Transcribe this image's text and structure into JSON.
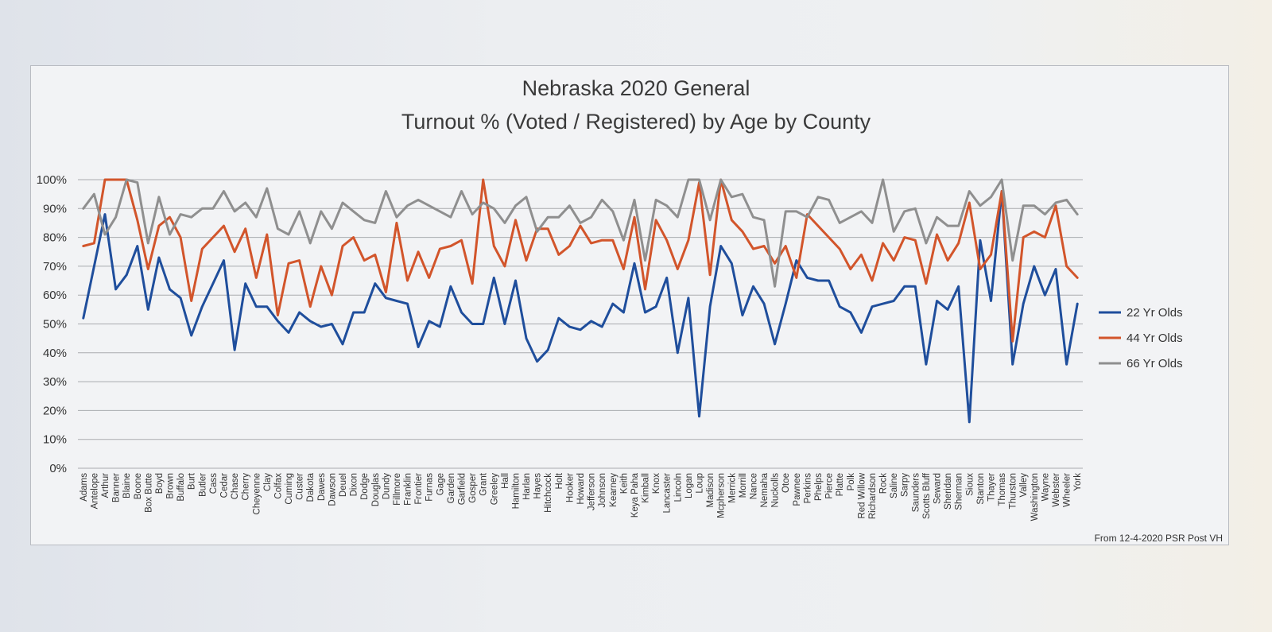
{
  "chart_data": {
    "type": "line",
    "title_lines": [
      "Nebraska 2020 General",
      "Turnout % (Voted / Registered) by Age by County"
    ],
    "xlabel": "",
    "ylabel": "",
    "ylim": [
      0,
      100
    ],
    "ytick_labels": [
      "0%",
      "10%",
      "20%",
      "30%",
      "40%",
      "50%",
      "60%",
      "70%",
      "80%",
      "90%",
      "100%"
    ],
    "grid": true,
    "legend_position": "right",
    "source_note": "From 12-4-2020 PSR Post VH",
    "categories": [
      "Adams",
      "Antelope",
      "Arthur",
      "Banner",
      "Blaine",
      "Boone",
      "Box Butte",
      "Boyd",
      "Brown",
      "Buffalo",
      "Burt",
      "Butler",
      "Cass",
      "Cedar",
      "Chase",
      "Cherry",
      "Cheyenne",
      "Clay",
      "Colfax",
      "Cuming",
      "Custer",
      "Dakota",
      "Dawes",
      "Dawson",
      "Deuel",
      "Dixon",
      "Dodge",
      "Douglas",
      "Dundy",
      "Fillmore",
      "Franklin",
      "Frontier",
      "Furnas",
      "Gage",
      "Garden",
      "Garfield",
      "Gosper",
      "Grant",
      "Greeley",
      "Hall",
      "Hamilton",
      "Harlan",
      "Hayes",
      "Hitchcock",
      "Holt",
      "Hooker",
      "Howard",
      "Jefferson",
      "Johnson",
      "Kearney",
      "Keith",
      "Keya Paha",
      "Kimball",
      "Knox",
      "Lancaster",
      "Lincoln",
      "Logan",
      "Loup",
      "Madison",
      "Mcpherson",
      "Merrick",
      "Morrill",
      "Nance",
      "Nemaha",
      "Nuckolls",
      "Otoe",
      "Pawnee",
      "Perkins",
      "Phelps",
      "Pierce",
      "Platte",
      "Polk",
      "Red Willow",
      "Richardson",
      "Rock",
      "Saline",
      "Sarpy",
      "Saunders",
      "Scotts Bluff",
      "Seward",
      "Sheridan",
      "Sherman",
      "Sioux",
      "Stanton",
      "Thayer",
      "Thomas",
      "Thurston",
      "Valley",
      "Washington",
      "Wayne",
      "Webster",
      "Wheeler",
      "York"
    ],
    "series": [
      {
        "name": "22 Yr Olds",
        "color": "#1f4e9c",
        "values": [
          52,
          70,
          88,
          62,
          67,
          77,
          55,
          73,
          62,
          59,
          46,
          56,
          64,
          72,
          41,
          64,
          56,
          56,
          51,
          47,
          54,
          51,
          49,
          50,
          43,
          54,
          54,
          64,
          59,
          58,
          57,
          42,
          51,
          49,
          63,
          54,
          50,
          50,
          66,
          50,
          65,
          45,
          37,
          41,
          52,
          49,
          48,
          51,
          49,
          57,
          54,
          71,
          54,
          56,
          66,
          40,
          59,
          18,
          56,
          77,
          71,
          53,
          63,
          57,
          43,
          57,
          72,
          66,
          65,
          65,
          56,
          54,
          47,
          56,
          57,
          58,
          63,
          63,
          36,
          58,
          55,
          63,
          16,
          79,
          58,
          96,
          36,
          57,
          70,
          60,
          69,
          36,
          57
        ]
      },
      {
        "name": "44 Yr Olds",
        "color": "#d2552b",
        "values": [
          77,
          78,
          100,
          100,
          100,
          86,
          69,
          84,
          87,
          80,
          58,
          76,
          80,
          84,
          75,
          83,
          66,
          81,
          53,
          71,
          72,
          56,
          70,
          60,
          77,
          80,
          72,
          74,
          61,
          85,
          65,
          75,
          66,
          76,
          77,
          79,
          64,
          100,
          77,
          70,
          86,
          72,
          83,
          83,
          74,
          77,
          84,
          78,
          79,
          79,
          69,
          87,
          62,
          86,
          79,
          69,
          79,
          99,
          67,
          100,
          86,
          82,
          76,
          77,
          71,
          77,
          66,
          88,
          84,
          80,
          76,
          69,
          74,
          65,
          78,
          72,
          80,
          79,
          64,
          81,
          72,
          78,
          92,
          69,
          74,
          96,
          44,
          80,
          82,
          80,
          91,
          70,
          66
        ]
      },
      {
        "name": "66 Yr Olds",
        "color": "#8f8f8f",
        "values": [
          90,
          95,
          81,
          87,
          100,
          99,
          78,
          94,
          81,
          88,
          87,
          90,
          90,
          96,
          89,
          92,
          87,
          97,
          83,
          81,
          89,
          78,
          89,
          83,
          92,
          89,
          86,
          85,
          96,
          87,
          91,
          93,
          91,
          89,
          87,
          96,
          88,
          92,
          90,
          85,
          91,
          94,
          82,
          87,
          87,
          91,
          85,
          87,
          93,
          89,
          79,
          93,
          72,
          93,
          91,
          87,
          100,
          100,
          86,
          100,
          94,
          95,
          87,
          86,
          63,
          89,
          89,
          87,
          94,
          93,
          85,
          87,
          89,
          85,
          100,
          82,
          89,
          90,
          78,
          87,
          84,
          84,
          96,
          91,
          94,
          100,
          72,
          91,
          91,
          88,
          92,
          93,
          88
        ]
      }
    ]
  }
}
